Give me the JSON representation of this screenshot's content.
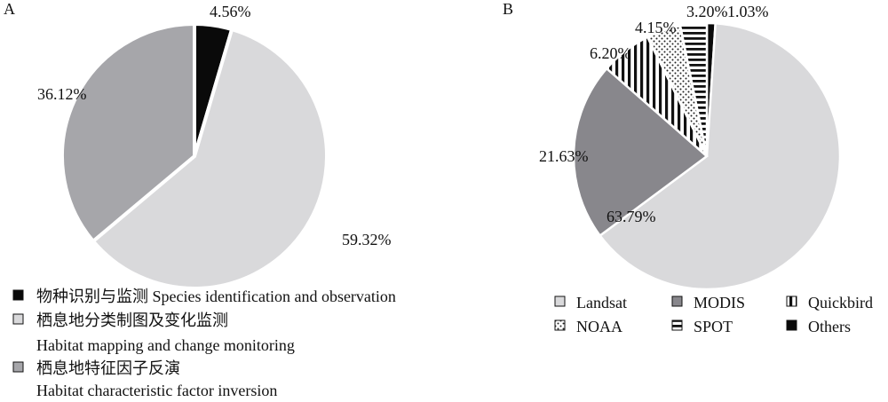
{
  "chart_data": [
    {
      "type": "pie",
      "panel_label": "A",
      "colors": [
        "#0a0a0a",
        "#d9d9db",
        "#a6a6aa"
      ],
      "slices": [
        {
          "label": "物种识别与监测 Species identification and observation",
          "value": 4.56,
          "value_label": "4.56%"
        },
        {
          "label": "栖息地分类制图及变化监测 Habitat mapping and change monitoring",
          "value": 59.32,
          "value_label": "59.32%"
        },
        {
          "label": "栖息地特征因子反演 Habitat characteristic factor inversion",
          "value": 36.12,
          "value_label": "36.12%"
        }
      ],
      "legend": [
        {
          "lines": [
            "物种识别与监测 Species identification and observation"
          ]
        },
        {
          "lines": [
            "栖息地分类制图及变化监测",
            "Habitat mapping and change monitoring"
          ]
        },
        {
          "lines": [
            "栖息地特征因子反演",
            "Habitat characteristic factor inversion"
          ]
        }
      ]
    },
    {
      "type": "pie",
      "panel_label": "B",
      "slices": [
        {
          "label": "Others",
          "value": 1.03,
          "value_label": "1.03%",
          "pattern": "solid-black"
        },
        {
          "label": "Landsat",
          "value": 63.79,
          "value_label": "63.79%",
          "pattern": "solid-lightgray"
        },
        {
          "label": "MODIS",
          "value": 21.63,
          "value_label": "21.63%",
          "pattern": "solid-gray"
        },
        {
          "label": "Quickbird",
          "value": 6.2,
          "value_label": "6.20%",
          "pattern": "vertical-stripes"
        },
        {
          "label": "NOAA",
          "value": 4.15,
          "value_label": "4.15%",
          "pattern": "dots"
        },
        {
          "label": "SPOT",
          "value": 3.2,
          "value_label": "3.20%",
          "pattern": "horizontal-stripes"
        }
      ],
      "legend": [
        "Landsat",
        "MODIS",
        "Quickbird",
        "NOAA",
        "SPOT",
        "Others"
      ]
    }
  ]
}
